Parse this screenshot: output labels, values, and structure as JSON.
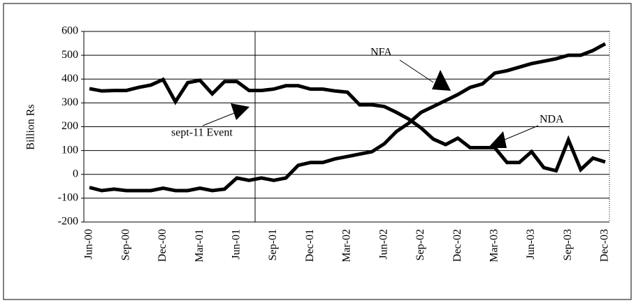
{
  "chart_data": {
    "type": "line",
    "y_label": "Billion Rs",
    "categories": [
      "Jun-00",
      null,
      null,
      "Sep-00",
      null,
      null,
      "Dec-00",
      null,
      null,
      "Mar-01",
      null,
      null,
      "Jun-01",
      null,
      null,
      "Sep-01",
      null,
      null,
      "Dec-01",
      null,
      null,
      "Mar-02",
      null,
      null,
      "Jun-02",
      null,
      null,
      "Sep-02",
      null,
      null,
      "Dec-02",
      null,
      null,
      "Mar-03",
      null,
      null,
      "Jun-03",
      null,
      null,
      "Sep-03",
      null,
      null,
      "Dec-03"
    ],
    "series": [
      {
        "name": "NDA",
        "color": "#000000",
        "values": [
          360,
          350,
          352,
          352,
          365,
          375,
          398,
          305,
          385,
          395,
          338,
          390,
          390,
          352,
          352,
          358,
          372,
          372,
          358,
          358,
          350,
          345,
          292,
          292,
          285,
          260,
          232,
          195,
          148,
          125,
          152,
          112,
          112,
          112,
          50,
          50,
          95,
          28,
          15,
          145,
          20,
          68,
          52
        ]
      },
      {
        "name": "NFA",
        "color": "#000000",
        "values": [
          -55,
          -68,
          -62,
          -68,
          -68,
          -68,
          -58,
          -68,
          -68,
          -58,
          -68,
          -62,
          -15,
          -25,
          -15,
          -25,
          -15,
          38,
          50,
          50,
          65,
          75,
          85,
          95,
          128,
          180,
          215,
          260,
          285,
          310,
          335,
          365,
          380,
          425,
          435,
          450,
          465,
          475,
          485,
          500,
          500,
          520,
          548
        ]
      }
    ],
    "annotations": [
      "sept-11 Event"
    ],
    "ylim": [
      -200,
      600
    ],
    "yticks": [
      -200,
      -100,
      0,
      100,
      200,
      300,
      400,
      500,
      600
    ],
    "grid": true
  }
}
